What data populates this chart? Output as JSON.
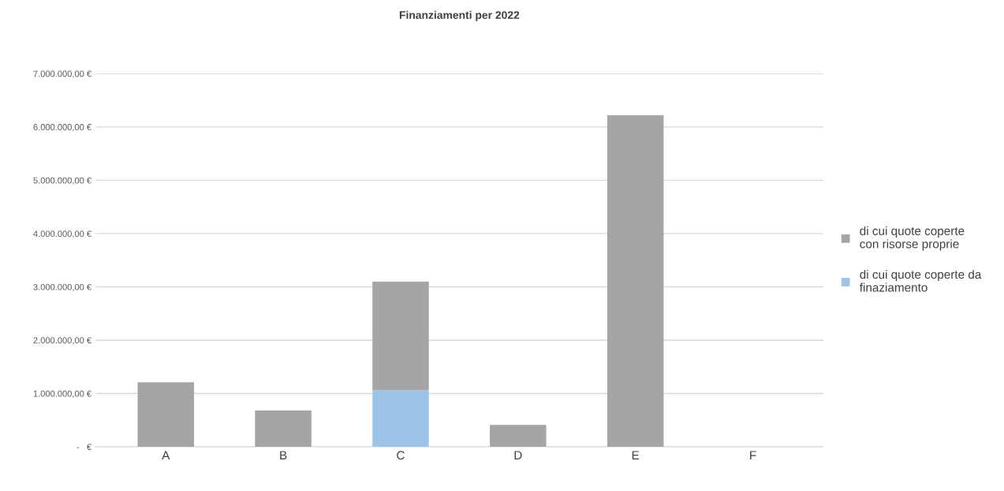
{
  "chart_data": {
    "type": "bar",
    "title": "Finanziamenti per 2022",
    "categories": [
      "A",
      "B",
      "C",
      "D",
      "E",
      "F"
    ],
    "stacked": true,
    "series": [
      {
        "name": "di cui quote coperte da finaziamento",
        "color": "#9dc3e6",
        "values": [
          0,
          0,
          1060000,
          0,
          0,
          0
        ]
      },
      {
        "name": "di cui quote coperte con risorse proprie",
        "color": "#a5a5a5",
        "values": [
          1210000,
          680000,
          2040000,
          410000,
          6220000,
          0
        ]
      }
    ],
    "ylim": [
      0,
      7000000
    ],
    "yticks": [
      {
        "value": 0,
        "label": "-   €"
      },
      {
        "value": 1000000,
        "label": "1.000.000,00 €"
      },
      {
        "value": 2000000,
        "label": "2.000.000,00 €"
      },
      {
        "value": 3000000,
        "label": "3.000.000,00 €"
      },
      {
        "value": 4000000,
        "label": "4.000.000,00 €"
      },
      {
        "value": 5000000,
        "label": "5.000.000,00 €"
      },
      {
        "value": 6000000,
        "label": "6.000.000,00 €"
      },
      {
        "value": 7000000,
        "label": "7.000.000,00 €"
      }
    ],
    "grid": "y",
    "legend": "right"
  }
}
